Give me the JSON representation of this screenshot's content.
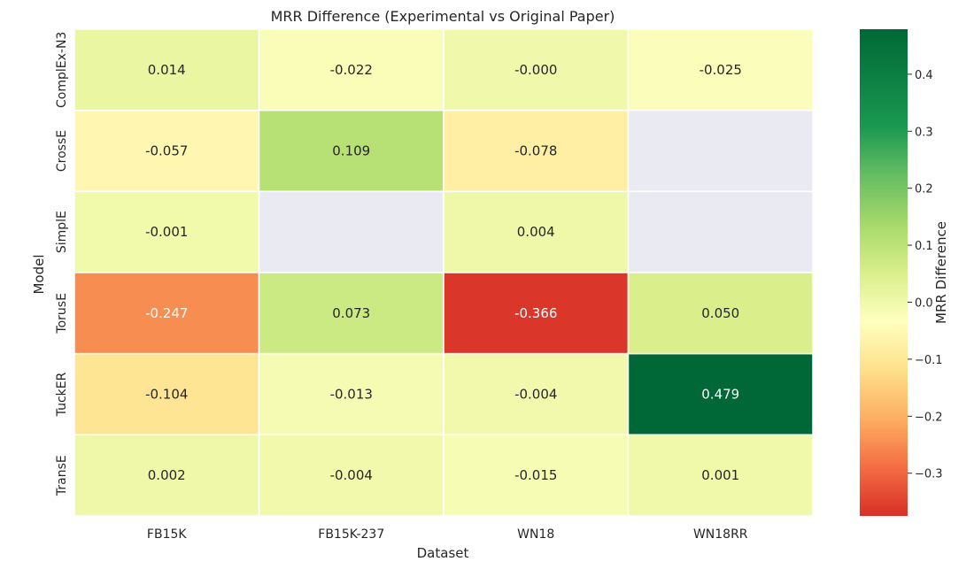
{
  "chart_data": {
    "type": "heatmap",
    "title": "MRR Difference (Experimental vs Original Paper)",
    "xlabel": "Dataset",
    "ylabel": "Model",
    "x_categories": [
      "FB15K",
      "FB15K-237",
      "WN18",
      "WN18RR"
    ],
    "y_categories": [
      "ComplEx-N3",
      "CrossE",
      "SimplE",
      "TorusE",
      "TuckER",
      "TransE"
    ],
    "values": [
      [
        0.014,
        -0.022,
        -0.0,
        -0.025
      ],
      [
        -0.057,
        0.109,
        -0.078,
        null
      ],
      [
        -0.001,
        null,
        0.004,
        null
      ],
      [
        -0.247,
        0.073,
        -0.366,
        0.05
      ],
      [
        -0.104,
        -0.013,
        -0.004,
        0.479
      ],
      [
        0.002,
        -0.004,
        -0.015,
        0.001
      ]
    ],
    "value_labels": [
      [
        "0.014",
        "-0.022",
        "-0.000",
        "-0.025"
      ],
      [
        "-0.057",
        "0.109",
        "-0.078",
        ""
      ],
      [
        "-0.001",
        "",
        "0.004",
        ""
      ],
      [
        "-0.247",
        "0.073",
        "-0.366",
        "0.050"
      ],
      [
        "-0.104",
        "-0.013",
        "-0.004",
        "0.479"
      ],
      [
        "0.002",
        "-0.004",
        "-0.015",
        "0.001"
      ]
    ],
    "colormap": "RdYlGn",
    "missing_color": "#eaeaf2",
    "colorbar": {
      "label": "MRR Difference",
      "range": [
        -0.375,
        0.479
      ],
      "ticks": [
        0.4,
        0.3,
        0.2,
        0.1,
        0.0,
        -0.1,
        -0.2,
        -0.3
      ],
      "tick_labels": [
        "0.4",
        "0.3",
        "0.2",
        "0.1",
        "0.0",
        "−0.1",
        "−0.2",
        "−0.3"
      ]
    },
    "grid": false,
    "legend": "colorbar-right"
  }
}
